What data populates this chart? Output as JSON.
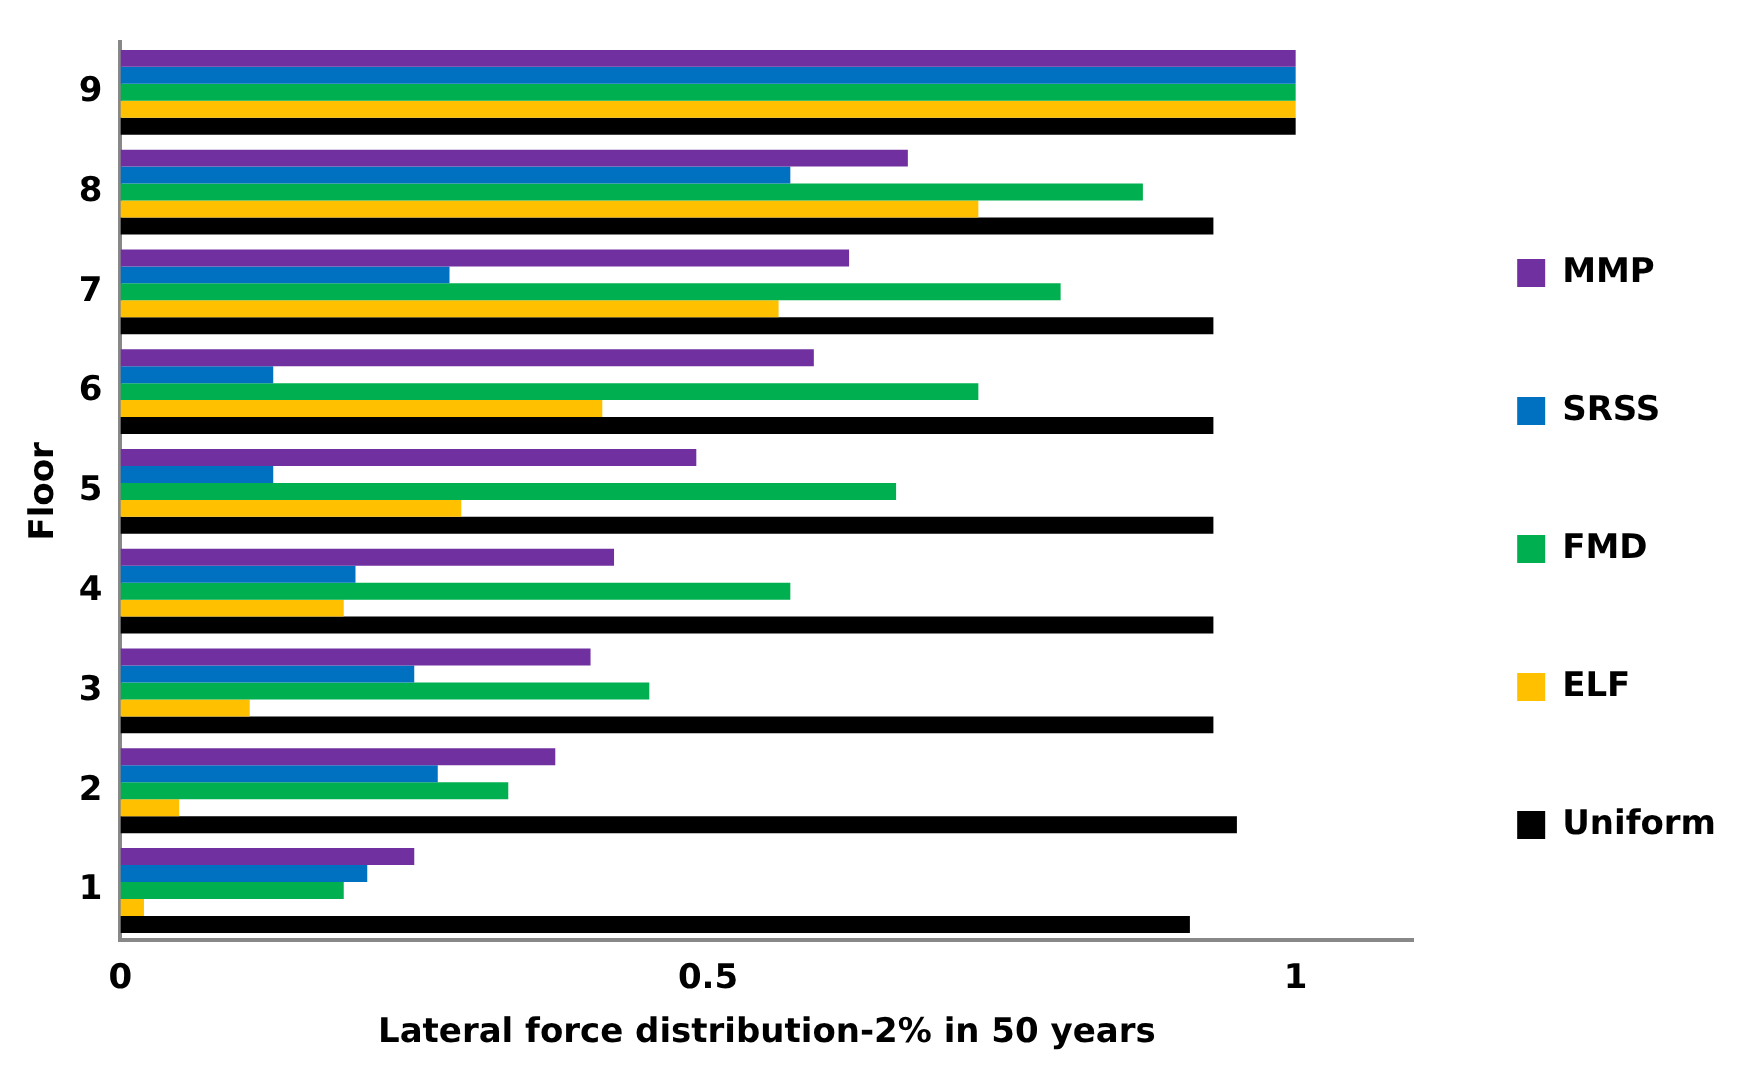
{
  "chart_data": {
    "type": "bar",
    "orientation": "horizontal",
    "xlabel": "Lateral force distribution-2% in 50 years",
    "ylabel": "Floor",
    "categories": [
      "9",
      "8",
      "7",
      "6",
      "5",
      "4",
      "3",
      "2",
      "1"
    ],
    "series": [
      {
        "name": "MMP",
        "color": "#7030a0",
        "values": [
          1.0,
          0.67,
          0.62,
          0.59,
          0.49,
          0.42,
          0.4,
          0.37,
          0.25
        ]
      },
      {
        "name": "SRSS",
        "color": "#0070c0",
        "values": [
          1.0,
          0.57,
          0.28,
          0.13,
          0.13,
          0.2,
          0.25,
          0.27,
          0.21
        ]
      },
      {
        "name": "FMD",
        "color": "#00b050",
        "values": [
          1.0,
          0.87,
          0.8,
          0.73,
          0.66,
          0.57,
          0.45,
          0.33,
          0.19
        ]
      },
      {
        "name": "ELF",
        "color": "#ffc000",
        "values": [
          1.0,
          0.73,
          0.56,
          0.41,
          0.29,
          0.19,
          0.11,
          0.05,
          0.02
        ]
      },
      {
        "name": "Uniform",
        "color": "#000000",
        "values": [
          1.0,
          0.93,
          0.93,
          0.93,
          0.93,
          0.93,
          0.93,
          0.95,
          0.91
        ]
      }
    ],
    "xlim": [
      0,
      1.1
    ],
    "xticks": [
      0,
      {
        "value": 0.5,
        "label": "0.5"
      },
      1
    ],
    "grid": false,
    "legend": "right"
  }
}
